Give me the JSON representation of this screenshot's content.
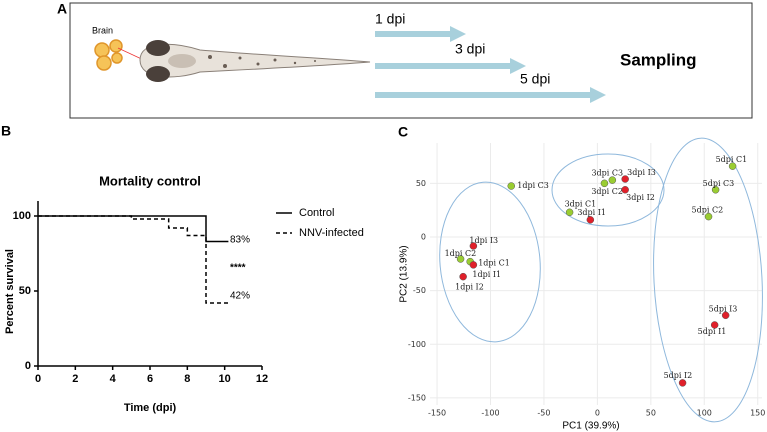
{
  "panels": {
    "a": "A",
    "b": "B",
    "c": "C"
  },
  "diagram": {
    "organ_label": "Brain",
    "timepoints": [
      "1 dpi",
      "3 dpi",
      "5 dpi"
    ],
    "action": "Sampling"
  },
  "chart_data": [
    {
      "type": "line",
      "title": "Mortality control",
      "xlabel": "Time (dpi)",
      "ylabel": "Percent survival",
      "xlim": [
        0,
        12
      ],
      "xticks": [
        0,
        2,
        4,
        6,
        8,
        10,
        12
      ],
      "ylim": [
        0,
        110
      ],
      "yticks": [
        0,
        50,
        100
      ],
      "legend": "right",
      "series": [
        {
          "name": "Control",
          "style": "solid",
          "color": "#000000",
          "x": [
            0,
            9,
            9,
            10.2
          ],
          "values": [
            100,
            100,
            83,
            83
          ]
        },
        {
          "name": "NNV-infected",
          "style": "dashed",
          "color": "#000000",
          "x": [
            0,
            5,
            5,
            7,
            7,
            8,
            8,
            9,
            9,
            10.2
          ],
          "values": [
            100,
            100,
            98,
            98,
            92,
            92,
            87,
            87,
            42,
            42
          ]
        }
      ],
      "annotations": [
        "83%",
        "****",
        "42%"
      ]
    },
    {
      "type": "scatter",
      "xlabel": "PC1 (39.9%)",
      "ylabel": "PC2 (13.9%)",
      "xlim": [
        -156.6,
        154
      ],
      "xticks": [
        -150,
        -100,
        -50,
        0,
        50,
        100,
        150
      ],
      "ylim": [
        -156.6,
        87.6
      ],
      "yticks": [
        -150,
        -100,
        -50,
        0,
        50
      ],
      "grid": true,
      "groups": [
        {
          "color": "#9acd32",
          "labels": [
            "1dpi C1",
            "1dpi C2",
            "1dpi C3",
            "3dpi C1",
            "3dpi C2",
            "3dpi C3",
            "5dpi C1",
            "5dpi C2",
            "5dpi C3"
          ],
          "x": [
            -119,
            -128,
            -80.6,
            -26,
            14,
            6.6,
            126.5,
            104,
            110.6
          ],
          "y": [
            -23,
            -20.5,
            47.5,
            23,
            53,
            50,
            66,
            19,
            44
          ]
        },
        {
          "color": "#e0202a",
          "labels": [
            "1dpi I1",
            "1dpi I2",
            "1dpi I3",
            "3dpi I1",
            "3dpi I2",
            "3dpi I3",
            "5dpi I1",
            "5dpi I2",
            "5dpi I3"
          ],
          "x": [
            -116,
            -125.6,
            -116,
            -6.6,
            26,
            26,
            109.7,
            79.7,
            120
          ],
          "y": [
            -26,
            -37,
            -8.4,
            16,
            44,
            54,
            -82,
            -136,
            -73
          ]
        }
      ]
    }
  ]
}
